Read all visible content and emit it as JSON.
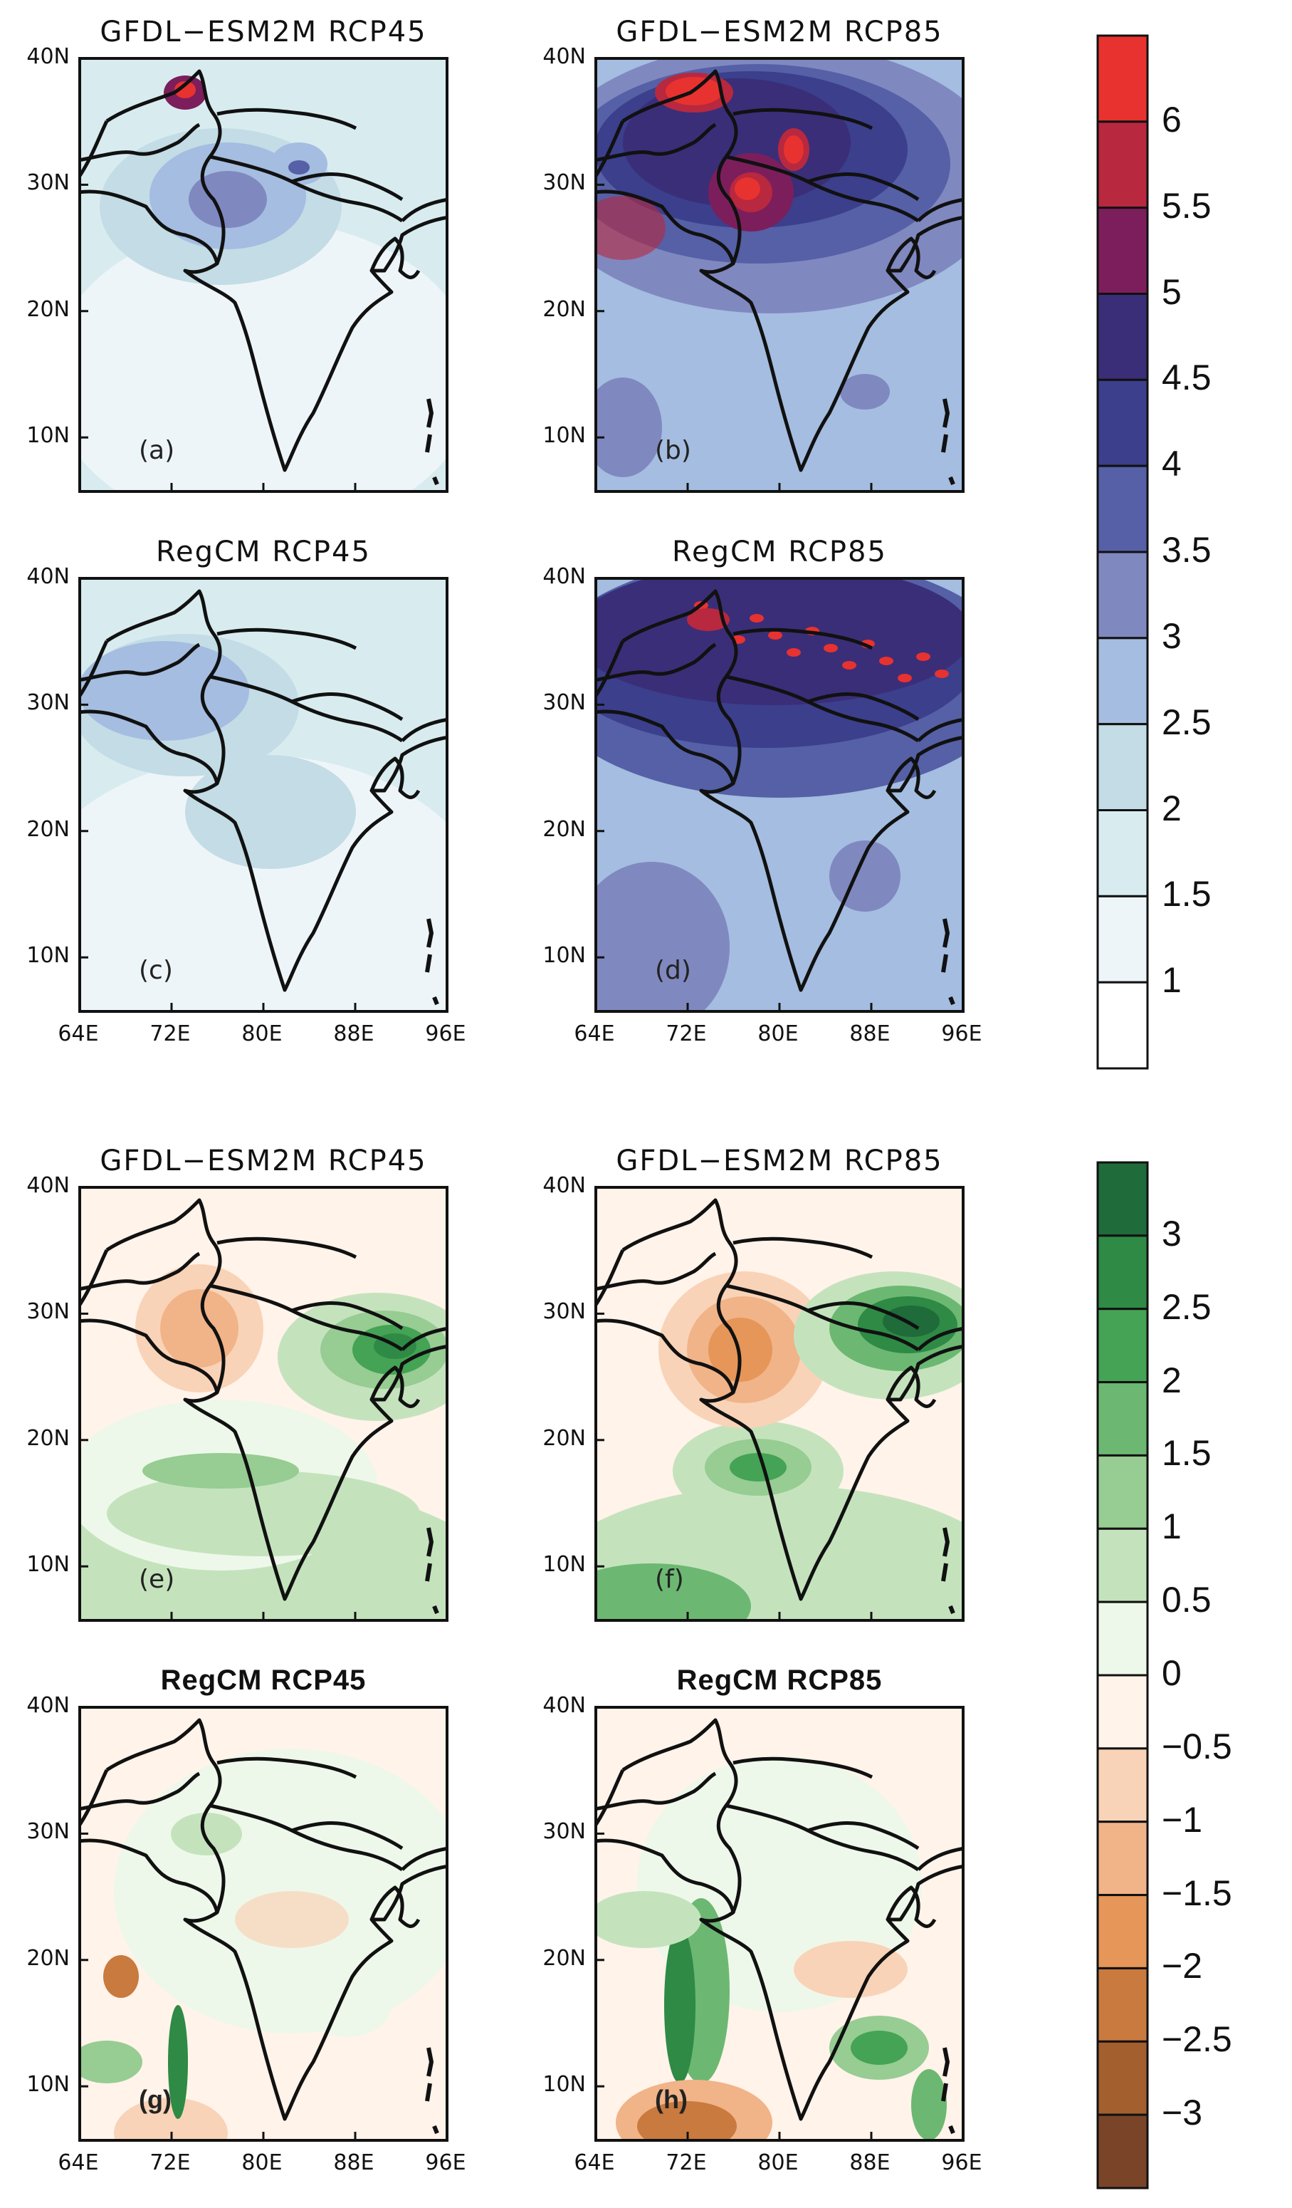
{
  "chart_data": [
    {
      "type": "heatmap",
      "group": "temperature_change",
      "panels": [
        {
          "id": "a",
          "model": "GFDL-ESM2M",
          "scenario": "RCP45",
          "title": "GFDL−ESM2M  RCP45",
          "label": "(a)",
          "bold": false
        },
        {
          "id": "b",
          "model": "GFDL-ESM2M",
          "scenario": "RCP85",
          "title": "GFDL−ESM2M  RCP85",
          "label": "(b)",
          "bold": false
        },
        {
          "id": "c",
          "model": "RegCM",
          "scenario": "RCP45",
          "title": "RegCM  RCP45",
          "label": "(c)",
          "bold": false
        },
        {
          "id": "d",
          "model": "RegCM",
          "scenario": "RCP85",
          "title": "RegCM  RCP85",
          "label": "(d)",
          "bold": false
        }
      ],
      "colorbar": {
        "levels": [
          "6",
          "5.5",
          "5",
          "4.5",
          "4",
          "3.5",
          "3",
          "2.5",
          "2",
          "1.5",
          "1"
        ],
        "colors": [
          "#e8322f",
          "#b8283f",
          "#7c1e5c",
          "#3a2e78",
          "#3b3f8c",
          "#5560a6",
          "#8088c0",
          "#a4bde0",
          "#c3dce6",
          "#d8ecf0",
          "#eef5f8",
          "#ffffff"
        ]
      }
    },
    {
      "type": "heatmap",
      "group": "precipitation_change",
      "panels": [
        {
          "id": "e",
          "model": "GFDL-ESM2M",
          "scenario": "RCP45",
          "title": "GFDL−ESM2M  RCP45",
          "label": "(e)",
          "bold": false
        },
        {
          "id": "f",
          "model": "GFDL-ESM2M",
          "scenario": "RCP85",
          "title": "GFDL−ESM2M  RCP85",
          "label": "(f)",
          "bold": false
        },
        {
          "id": "g",
          "model": "RegCM",
          "scenario": "RCP45",
          "title": "RegCM  RCP45",
          "label": "(g)",
          "bold": true
        },
        {
          "id": "h",
          "model": "RegCM",
          "scenario": "RCP85",
          "title": "RegCM  RCP85",
          "label": "(h)",
          "bold": true
        }
      ],
      "colorbar": {
        "levels": [
          "3",
          "2.5",
          "2",
          "1.5",
          "1",
          "0.5",
          "0",
          "−0.5",
          "−1",
          "−1.5",
          "−2",
          "−2.5",
          "−3"
        ],
        "colors": [
          "#1f6b3a",
          "#2e8a45",
          "#44a354",
          "#6cb872",
          "#97cc93",
          "#c4e3bd",
          "#eef8ea",
          "#fff3ea",
          "#f9d3b7",
          "#f1b388",
          "#e59658",
          "#c97a3e",
          "#a45f2f",
          "#7a4428"
        ]
      }
    }
  ],
  "axes": {
    "lat_ticks": [
      "40N",
      "30N",
      "20N",
      "10N"
    ],
    "lon_ticks": [
      "64E",
      "72E",
      "80E",
      "88E",
      "96E"
    ]
  }
}
